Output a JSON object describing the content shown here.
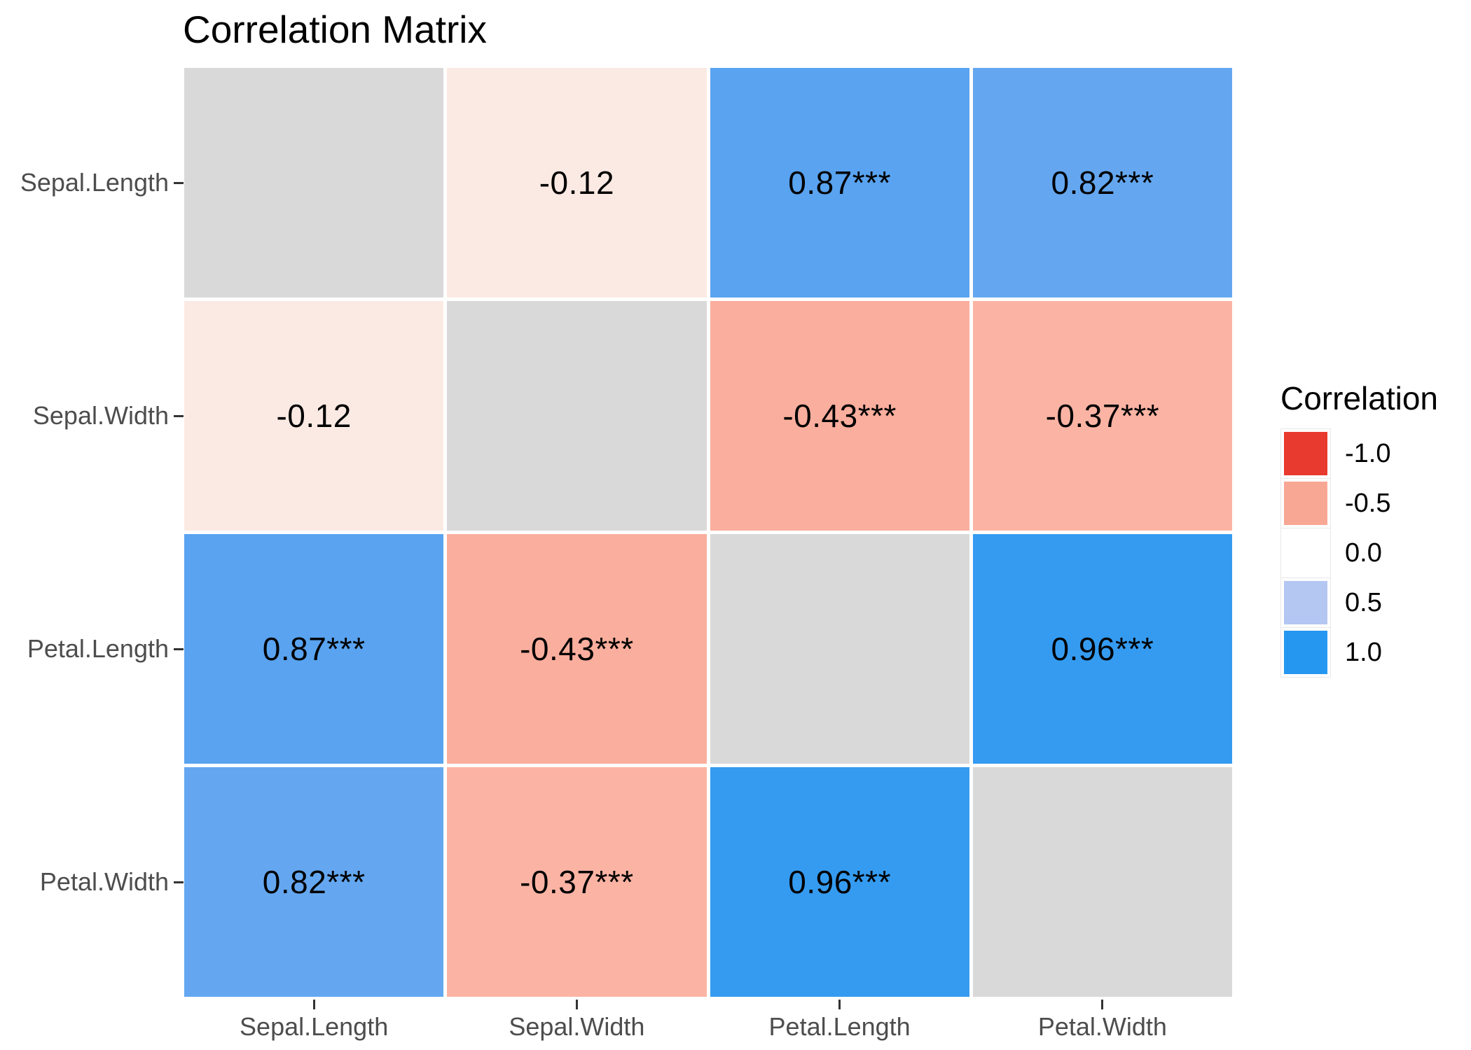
{
  "title": "Correlation Matrix",
  "colors": {
    "background": "#ffffff",
    "axis_text": "#4d4d4d",
    "tick": "#333333",
    "cell_text": "#000000",
    "diagonal": "#d9d9d9",
    "legend_key_border": "#e8e8e8"
  },
  "chart_data": {
    "type": "heatmap",
    "title": "Correlation Matrix",
    "variables": [
      "Sepal.Length",
      "Sepal.Width",
      "Petal.Length",
      "Petal.Width"
    ],
    "x_tick_labels": [
      "Sepal.Length",
      "Sepal.Width",
      "Petal.Length",
      "Petal.Width"
    ],
    "y_tick_labels": [
      "Sepal.Length",
      "Sepal.Width",
      "Petal.Length",
      "Petal.Width"
    ],
    "matrix": [
      [
        null,
        -0.12,
        0.87,
        0.82
      ],
      [
        -0.12,
        null,
        -0.43,
        -0.37
      ],
      [
        0.87,
        -0.43,
        null,
        0.96
      ],
      [
        0.82,
        -0.37,
        0.96,
        null
      ]
    ],
    "significance": [
      [
        "",
        "",
        "***",
        "***"
      ],
      [
        "",
        "",
        "***",
        "***"
      ],
      [
        "***",
        "***",
        "",
        "***"
      ],
      [
        "***",
        "***",
        "***",
        ""
      ]
    ],
    "cells": [
      {
        "row": "Sepal.Length",
        "col": "Sepal.Length",
        "value": null,
        "label": "",
        "color": "#d9d9d9"
      },
      {
        "row": "Sepal.Length",
        "col": "Sepal.Width",
        "value": -0.12,
        "label": "-0.12",
        "color": "#fbeae3"
      },
      {
        "row": "Sepal.Length",
        "col": "Petal.Length",
        "value": 0.87,
        "label": "0.87***",
        "color": "#59a3f0"
      },
      {
        "row": "Sepal.Length",
        "col": "Petal.Width",
        "value": 0.82,
        "label": "0.82***",
        "color": "#64a7f0"
      },
      {
        "row": "Sepal.Width",
        "col": "Sepal.Length",
        "value": -0.12,
        "label": "-0.12",
        "color": "#fbeae3"
      },
      {
        "row": "Sepal.Width",
        "col": "Sepal.Width",
        "value": null,
        "label": "",
        "color": "#d9d9d9"
      },
      {
        "row": "Sepal.Width",
        "col": "Petal.Length",
        "value": -0.43,
        "label": "-0.43***",
        "color": "#faae9d"
      },
      {
        "row": "Sepal.Width",
        "col": "Petal.Width",
        "value": -0.37,
        "label": "-0.37***",
        "color": "#fbb4a4"
      },
      {
        "row": "Petal.Length",
        "col": "Sepal.Length",
        "value": 0.87,
        "label": "0.87***",
        "color": "#59a3f0"
      },
      {
        "row": "Petal.Length",
        "col": "Sepal.Width",
        "value": -0.43,
        "label": "-0.43***",
        "color": "#faae9d"
      },
      {
        "row": "Petal.Length",
        "col": "Petal.Length",
        "value": null,
        "label": "",
        "color": "#d9d9d9"
      },
      {
        "row": "Petal.Length",
        "col": "Petal.Width",
        "value": 0.96,
        "label": "0.96***",
        "color": "#359bf1"
      },
      {
        "row": "Petal.Width",
        "col": "Sepal.Length",
        "value": 0.82,
        "label": "0.82***",
        "color": "#64a7f0"
      },
      {
        "row": "Petal.Width",
        "col": "Sepal.Width",
        "value": -0.37,
        "label": "-0.37***",
        "color": "#fbb4a4"
      },
      {
        "row": "Petal.Width",
        "col": "Petal.Length",
        "value": 0.96,
        "label": "0.96***",
        "color": "#359bf1"
      },
      {
        "row": "Petal.Width",
        "col": "Petal.Width",
        "value": null,
        "label": "",
        "color": "#d9d9d9"
      }
    ],
    "legend": {
      "title": "Correlation",
      "position": "right",
      "entries": [
        {
          "label": "-1.0",
          "color": "#e83a2e"
        },
        {
          "label": "-0.5",
          "color": "#f9a795"
        },
        {
          "label": "0.0",
          "color": "#ffffff"
        },
        {
          "label": "0.5",
          "color": "#b4c7f2"
        },
        {
          "label": "1.0",
          "color": "#2597f1"
        }
      ]
    },
    "value_range": [
      -1.0,
      1.0
    ],
    "grid": false
  }
}
